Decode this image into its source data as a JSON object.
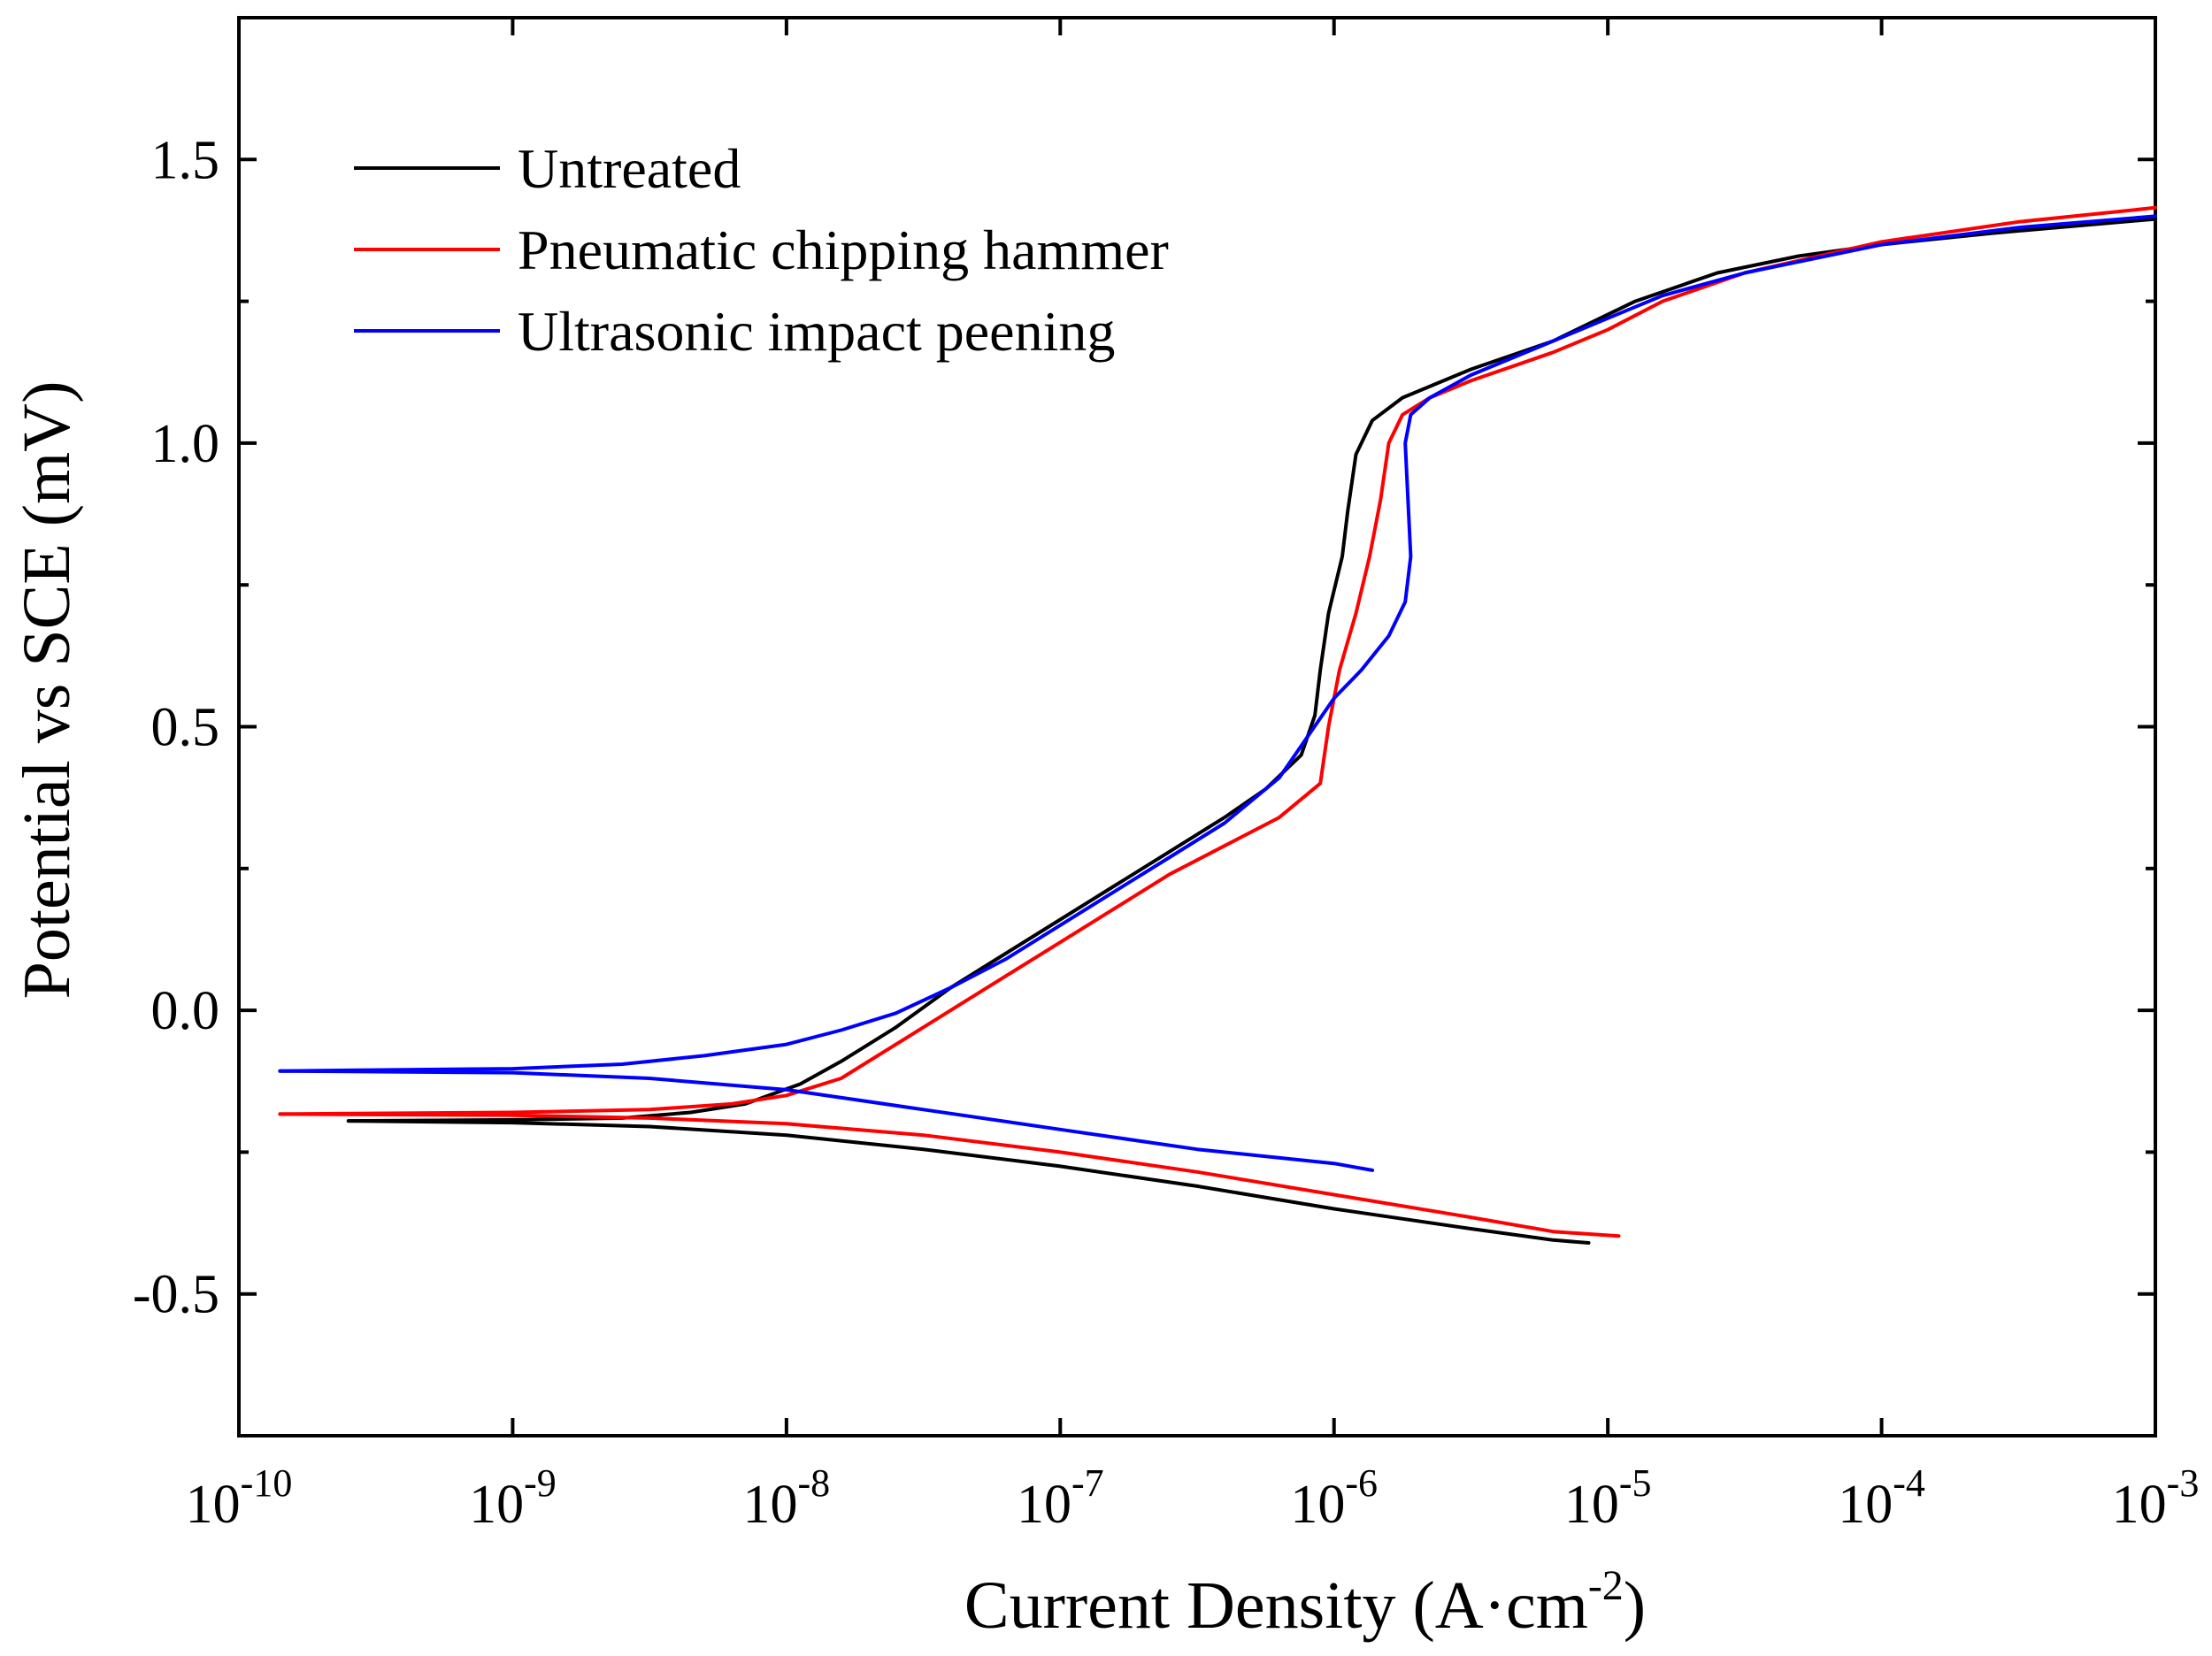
{
  "chart_data": {
    "type": "line",
    "title": "",
    "xlabel": "Current Density (A·cm⁻²)",
    "xlabel_main": "Current Density (A·cm",
    "xlabel_sup": "-2",
    "xlabel_end": ")",
    "ylabel": "Potential vs SCE (mV)",
    "xscale": "log",
    "xlim_exp": [
      -10,
      -3
    ],
    "ylim": [
      -0.75,
      1.75
    ],
    "x_ticks": [
      {
        "exp": -10,
        "base": "10",
        "sup": "-10"
      },
      {
        "exp": -9,
        "base": "10",
        "sup": "-9"
      },
      {
        "exp": -8,
        "base": "10",
        "sup": "-8"
      },
      {
        "exp": -7,
        "base": "10",
        "sup": "-7"
      },
      {
        "exp": -6,
        "base": "10",
        "sup": "-6"
      },
      {
        "exp": -5,
        "base": "10",
        "sup": "-5"
      },
      {
        "exp": -4,
        "base": "10",
        "sup": "-4"
      },
      {
        "exp": -3,
        "base": "10",
        "sup": "-3"
      }
    ],
    "y_ticks": [
      {
        "value": -0.5,
        "label": "-0.5"
      },
      {
        "value": 0.0,
        "label": "0.0"
      },
      {
        "value": 0.5,
        "label": "0.5"
      },
      {
        "value": 1.0,
        "label": "1.0"
      },
      {
        "value": 1.5,
        "label": "1.5"
      }
    ],
    "legend_position": "top-left",
    "series": [
      {
        "name": "Untreated",
        "color": "#000000",
        "cathodic": [
          [
            -9.6,
            -0.195
          ],
          [
            -9.0,
            -0.198
          ],
          [
            -8.5,
            -0.205
          ],
          [
            -8.0,
            -0.22
          ],
          [
            -7.5,
            -0.245
          ],
          [
            -7.0,
            -0.275
          ],
          [
            -6.5,
            -0.31
          ],
          [
            -6.0,
            -0.35
          ],
          [
            -5.5,
            -0.385
          ],
          [
            -5.2,
            -0.405
          ],
          [
            -5.07,
            -0.41
          ]
        ],
        "anodic": [
          [
            -9.6,
            -0.195
          ],
          [
            -9.0,
            -0.193
          ],
          [
            -8.6,
            -0.19
          ],
          [
            -8.35,
            -0.18
          ],
          [
            -8.15,
            -0.165
          ],
          [
            -7.95,
            -0.13
          ],
          [
            -7.8,
            -0.09
          ],
          [
            -7.6,
            -0.03
          ],
          [
            -7.4,
            0.04
          ],
          [
            -7.2,
            0.1
          ],
          [
            -7.0,
            0.16
          ],
          [
            -6.8,
            0.22
          ],
          [
            -6.6,
            0.28
          ],
          [
            -6.4,
            0.34
          ],
          [
            -6.25,
            0.39
          ],
          [
            -6.12,
            0.45
          ],
          [
            -6.07,
            0.52
          ],
          [
            -6.05,
            0.6
          ],
          [
            -6.02,
            0.7
          ],
          [
            -5.97,
            0.8
          ],
          [
            -5.95,
            0.88
          ],
          [
            -5.92,
            0.98
          ],
          [
            -5.86,
            1.04
          ],
          [
            -5.75,
            1.08
          ],
          [
            -5.5,
            1.13
          ],
          [
            -5.2,
            1.18
          ],
          [
            -4.9,
            1.25
          ],
          [
            -4.6,
            1.3
          ],
          [
            -4.3,
            1.33
          ],
          [
            -4.0,
            1.35
          ],
          [
            -3.6,
            1.37
          ],
          [
            -3.0,
            1.395
          ]
        ]
      },
      {
        "name": "Pneumatic chipping hammer",
        "color": "#ff0000",
        "cathodic": [
          [
            -9.85,
            -0.183
          ],
          [
            -9.0,
            -0.185
          ],
          [
            -8.5,
            -0.19
          ],
          [
            -8.0,
            -0.2
          ],
          [
            -7.5,
            -0.22
          ],
          [
            -7.0,
            -0.25
          ],
          [
            -6.5,
            -0.285
          ],
          [
            -6.0,
            -0.325
          ],
          [
            -5.5,
            -0.365
          ],
          [
            -5.2,
            -0.39
          ],
          [
            -4.96,
            -0.398
          ]
        ],
        "anodic": [
          [
            -9.85,
            -0.183
          ],
          [
            -9.0,
            -0.18
          ],
          [
            -8.5,
            -0.175
          ],
          [
            -8.2,
            -0.165
          ],
          [
            -8.0,
            -0.15
          ],
          [
            -7.8,
            -0.12
          ],
          [
            -7.6,
            -0.06
          ],
          [
            -7.4,
            0.0
          ],
          [
            -7.2,
            0.06
          ],
          [
            -7.0,
            0.12
          ],
          [
            -6.8,
            0.18
          ],
          [
            -6.6,
            0.24
          ],
          [
            -6.4,
            0.29
          ],
          [
            -6.2,
            0.34
          ],
          [
            -6.05,
            0.4
          ],
          [
            -6.02,
            0.5
          ],
          [
            -5.98,
            0.6
          ],
          [
            -5.92,
            0.7
          ],
          [
            -5.87,
            0.8
          ],
          [
            -5.83,
            0.9
          ],
          [
            -5.8,
            1.0
          ],
          [
            -5.75,
            1.05
          ],
          [
            -5.65,
            1.08
          ],
          [
            -5.5,
            1.11
          ],
          [
            -5.2,
            1.16
          ],
          [
            -5.0,
            1.2
          ],
          [
            -4.8,
            1.25
          ],
          [
            -4.5,
            1.3
          ],
          [
            -4.0,
            1.355
          ],
          [
            -3.5,
            1.39
          ],
          [
            -3.0,
            1.415
          ]
        ]
      },
      {
        "name": "Ultrasonic impact peening",
        "color": "#0000ff",
        "cathodic": [
          [
            -9.85,
            -0.107
          ],
          [
            -9.0,
            -0.11
          ],
          [
            -8.5,
            -0.12
          ],
          [
            -8.0,
            -0.14
          ],
          [
            -7.5,
            -0.175
          ],
          [
            -7.0,
            -0.21
          ],
          [
            -6.5,
            -0.245
          ],
          [
            -6.0,
            -0.27
          ],
          [
            -5.86,
            -0.282
          ]
        ],
        "anodic": [
          [
            -9.85,
            -0.107
          ],
          [
            -9.0,
            -0.103
          ],
          [
            -8.6,
            -0.095
          ],
          [
            -8.3,
            -0.08
          ],
          [
            -8.0,
            -0.06
          ],
          [
            -7.8,
            -0.035
          ],
          [
            -7.6,
            -0.005
          ],
          [
            -7.4,
            0.04
          ],
          [
            -7.2,
            0.09
          ],
          [
            -7.0,
            0.15
          ],
          [
            -6.8,
            0.21
          ],
          [
            -6.6,
            0.27
          ],
          [
            -6.4,
            0.33
          ],
          [
            -6.2,
            0.41
          ],
          [
            -6.0,
            0.55
          ],
          [
            -5.9,
            0.6
          ],
          [
            -5.8,
            0.66
          ],
          [
            -5.74,
            0.72
          ],
          [
            -5.72,
            0.8
          ],
          [
            -5.73,
            0.9
          ],
          [
            -5.74,
            1.0
          ],
          [
            -5.72,
            1.05
          ],
          [
            -5.65,
            1.08
          ],
          [
            -5.5,
            1.12
          ],
          [
            -5.2,
            1.18
          ],
          [
            -5.0,
            1.22
          ],
          [
            -4.8,
            1.26
          ],
          [
            -4.5,
            1.3
          ],
          [
            -4.0,
            1.35
          ],
          [
            -3.5,
            1.38
          ],
          [
            -3.0,
            1.4
          ]
        ]
      }
    ]
  }
}
